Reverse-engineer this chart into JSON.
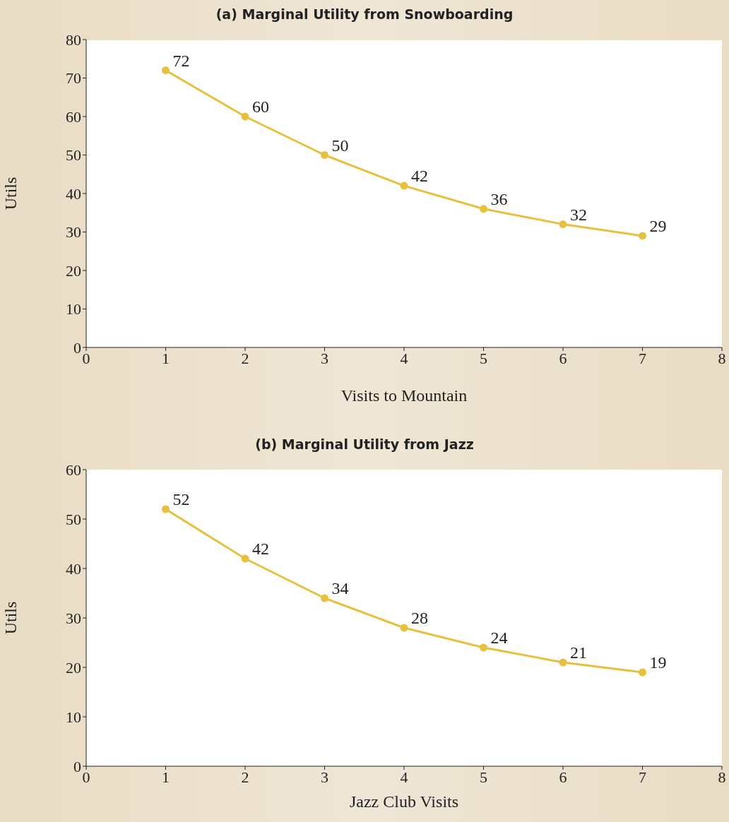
{
  "chart_data": [
    {
      "type": "line",
      "title": "(a) Marginal Utility from Snowboarding",
      "xlabel": "Visits to Mountain",
      "ylabel": "Utils",
      "x": [
        1,
        2,
        3,
        4,
        5,
        6,
        7
      ],
      "series": [
        {
          "color": "#e8c040",
          "values": [
            72,
            60,
            50,
            42,
            36,
            32,
            29
          ]
        }
      ],
      "xlim": [
        0,
        8
      ],
      "xticks": [
        0,
        1,
        2,
        3,
        4,
        5,
        6,
        7,
        8
      ],
      "ylim": [
        0,
        80
      ],
      "yticks": [
        0,
        10,
        20,
        30,
        40,
        50,
        60,
        70,
        80
      ],
      "grid": false,
      "legend": false,
      "marker": "circle",
      "line_style": "solid",
      "data_labels": true
    },
    {
      "type": "line",
      "title": "(b) Marginal Utility from Jazz",
      "xlabel": "Jazz Club Visits",
      "ylabel": "Utils",
      "x": [
        1,
        2,
        3,
        4,
        5,
        6,
        7
      ],
      "series": [
        {
          "color": "#e8c040",
          "values": [
            52,
            42,
            34,
            28,
            24,
            21,
            19
          ]
        }
      ],
      "xlim": [
        0,
        8
      ],
      "xticks": [
        0,
        1,
        2,
        3,
        4,
        5,
        6,
        7,
        8
      ],
      "ylim": [
        0,
        60
      ],
      "yticks": [
        0,
        10,
        20,
        30,
        40,
        50,
        60
      ],
      "grid": false,
      "legend": false,
      "marker": "circle",
      "line_style": "solid",
      "data_labels": true
    }
  ]
}
